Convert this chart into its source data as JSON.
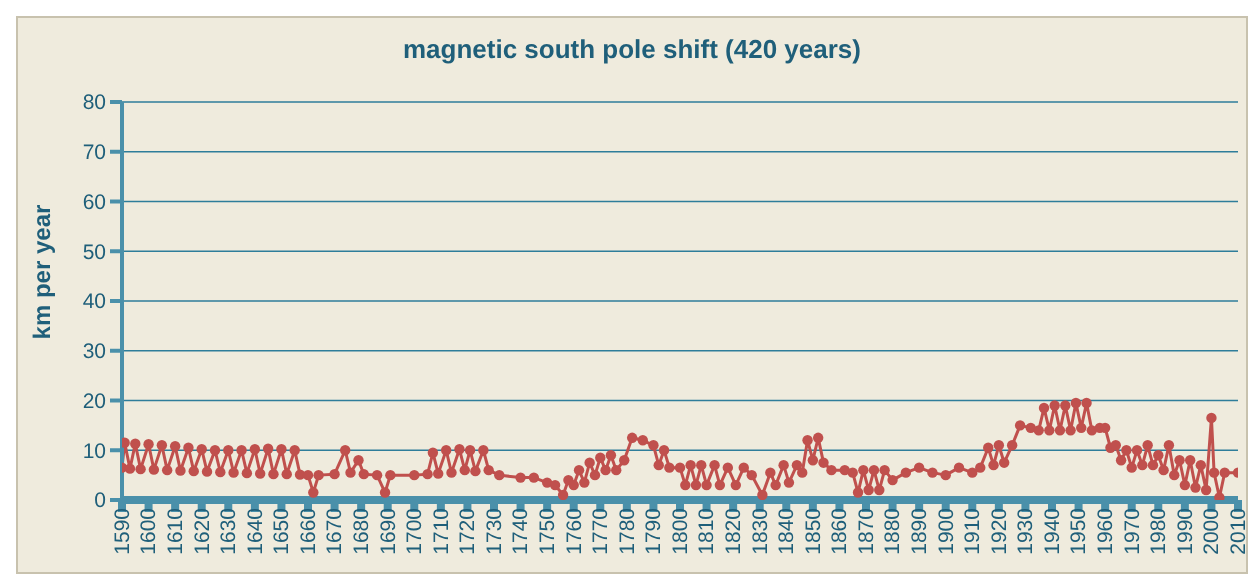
{
  "chart_data": {
    "type": "line",
    "title": "magnetic south pole shift (420 years)",
    "ylabel": "km per year",
    "grid": "y",
    "marker": "circle",
    "x": [
      1590,
      1591,
      1593,
      1595,
      1597,
      1600,
      1602,
      1605,
      1607,
      1610,
      1612,
      1615,
      1617,
      1620,
      1622,
      1625,
      1627,
      1630,
      1632,
      1635,
      1637,
      1640,
      1642,
      1645,
      1647,
      1650,
      1652,
      1655,
      1657,
      1660,
      1662,
      1664,
      1670,
      1674,
      1676,
      1679,
      1681,
      1686,
      1689,
      1691,
      1700,
      1705,
      1707,
      1709,
      1712,
      1714,
      1717,
      1719,
      1721,
      1723,
      1726,
      1728,
      1732,
      1740,
      1745,
      1750,
      1753,
      1756,
      1758,
      1760,
      1762,
      1764,
      1766,
      1768,
      1770,
      1772,
      1774,
      1776,
      1779,
      1782,
      1786,
      1790,
      1792,
      1794,
      1796,
      1800,
      1802,
      1804,
      1806,
      1808,
      1810,
      1813,
      1815,
      1818,
      1821,
      1824,
      1827,
      1831,
      1834,
      1836,
      1839,
      1841,
      1844,
      1846,
      1848,
      1850,
      1852,
      1854,
      1857,
      1862,
      1865,
      1867,
      1869,
      1871,
      1873,
      1875,
      1877,
      1880,
      1885,
      1890,
      1895,
      1900,
      1905,
      1910,
      1913,
      1916,
      1918,
      1920,
      1922,
      1925,
      1928,
      1932,
      1935,
      1937,
      1939,
      1941,
      1943,
      1945,
      1947,
      1949,
      1951,
      1953,
      1955,
      1958,
      1960,
      1962,
      1964,
      1966,
      1968,
      1970,
      1972,
      1974,
      1976,
      1978,
      1980,
      1982,
      1984,
      1986,
      1988,
      1990,
      1992,
      1994,
      1996,
      1998,
      2000,
      2001,
      2003,
      2005,
      2010
    ],
    "series": [
      {
        "color": "#c0504d",
        "values": [
          6.5,
          11.5,
          6.3,
          11.3,
          6.2,
          11.2,
          6.1,
          11,
          6,
          10.8,
          5.9,
          10.5,
          5.8,
          10.2,
          5.7,
          10,
          5.6,
          10,
          5.5,
          10,
          5.4,
          10.2,
          5.3,
          10.3,
          5.2,
          10.2,
          5.2,
          10,
          5.1,
          5,
          1.5,
          5,
          5.2,
          10,
          5.5,
          8,
          5.2,
          5,
          1.5,
          5,
          5,
          5.2,
          9.5,
          5.3,
          10,
          5.5,
          10.2,
          6,
          10,
          5.8,
          10,
          6,
          5,
          4.5,
          4.5,
          3.5,
          3,
          1,
          4,
          3,
          6,
          3.5,
          7.5,
          5,
          8.5,
          6,
          9,
          6,
          8,
          12.5,
          12,
          11,
          7,
          10,
          6.5,
          6.5,
          3,
          7,
          3,
          7,
          3,
          7,
          3,
          6.5,
          3,
          6.5,
          5,
          1,
          5.5,
          3,
          7,
          3.5,
          7,
          5.5,
          12,
          8,
          12.5,
          7.5,
          6,
          6,
          5.5,
          1.5,
          6,
          2,
          6,
          2,
          6,
          4,
          5.5,
          6.5,
          5.5,
          5,
          6.5,
          5.5,
          6.5,
          10.5,
          7,
          11,
          7.5,
          11,
          15,
          14.5,
          14,
          18.5,
          14,
          19,
          14,
          19,
          14,
          19.5,
          14.5,
          19.5,
          14,
          14.5,
          14.5,
          10.5,
          11,
          8,
          10,
          6.5,
          10,
          7,
          11,
          7,
          9,
          6,
          11,
          5,
          8,
          3,
          8,
          2.5,
          7,
          2,
          16.5,
          5.5,
          0.5,
          5.5,
          5.5
        ]
      }
    ],
    "xlim": [
      1590,
      2010
    ],
    "xticks": [
      1590,
      1600,
      1610,
      1620,
      1630,
      1640,
      1650,
      1660,
      1670,
      1680,
      1690,
      1700,
      1710,
      1720,
      1730,
      1740,
      1750,
      1760,
      1770,
      1780,
      1790,
      1800,
      1810,
      1820,
      1830,
      1840,
      1850,
      1860,
      1870,
      1880,
      1890,
      1900,
      1910,
      1920,
      1930,
      1940,
      1950,
      1960,
      1970,
      1980,
      1990,
      2000,
      2010
    ],
    "ylim": [
      0,
      80
    ],
    "yticks": [
      0,
      10,
      20,
      30,
      40,
      50,
      60,
      70,
      80
    ]
  }
}
